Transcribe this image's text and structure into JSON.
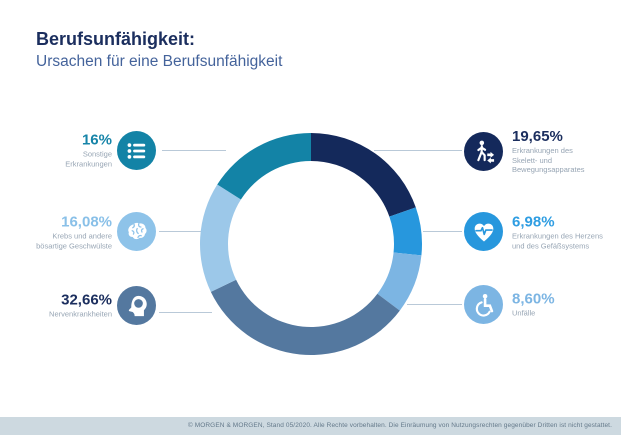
{
  "header": {
    "title": "Berufsunfähigkeit:",
    "subtitle": "Ursachen für eine Berufsunfähigkeit"
  },
  "chart_data": {
    "type": "pie",
    "variant": "donut",
    "title": "Berufsunfähigkeit: Ursachen für eine Berufsunfähigkeit",
    "start_angle": "top",
    "direction": "clockwise",
    "unit": "%",
    "segments": [
      {
        "label": "Erkrankungen des Skelett- und Bewegungsapparates",
        "value": 19.65,
        "display": "19,65%",
        "color": "#14295b"
      },
      {
        "label": "Erkrankungen des Herzens und des Gefäßsystems",
        "value": 6.98,
        "display": "6,98%",
        "color": "#2797dd"
      },
      {
        "label": "Unfälle",
        "value": 8.6,
        "display": "8,60%",
        "color": "#7cb5e3"
      },
      {
        "label": "Nervenkrankheiten",
        "value": 32.66,
        "display": "32,66%",
        "color": "#54789f"
      },
      {
        "label": "Krebs und andere bösartige Geschwülste",
        "value": 16.08,
        "display": "16,08%",
        "color": "#9cc8e9"
      },
      {
        "label": "Sonstige Erkrankungen",
        "value": 16.0,
        "display": "16%",
        "color": "#1383a6"
      }
    ]
  },
  "legend": {
    "left": [
      {
        "pct": "16%",
        "label": "Sonstige\nErkrankungen",
        "color": "#1684a8",
        "icon": "list-icon",
        "icon_bg": "#1383a6"
      },
      {
        "pct": "16,08%",
        "label": "Krebs und andere\nbösartige Geschwülste",
        "color": "#89c0e8",
        "icon": "brain-icon",
        "icon_bg": "#8ec3e9"
      },
      {
        "pct": "32,66%",
        "label": "Nervenkrankheiten",
        "color": "#1b2e5e",
        "icon": "head-profile-icon",
        "icon_bg": "#54789f"
      }
    ],
    "right": [
      {
        "pct": "19,65%",
        "label": "Erkrankungen des\nSkelett- und\nBewegungsapparates",
        "color": "#1b2e5e",
        "icon": "walking-person-icon",
        "icon_bg": "#14295b"
      },
      {
        "pct": "6,98%",
        "label": "Erkrankungen des Herzens\nund des Gefäßsystems",
        "color": "#2e9de2",
        "icon": "heart-pulse-icon",
        "icon_bg": "#2797dd"
      },
      {
        "pct": "8,60%",
        "label": "Unfälle",
        "color": "#7cb5e3",
        "icon": "wheelchair-icon",
        "icon_bg": "#7cb5e3"
      }
    ]
  },
  "footer": {
    "copyright": "© MORGEN & MORGEN, Stand 05/2020. Alle Rechte vorbehalten. Die Einräumung von Nutzungsrechten gegenüber Dritten ist nicht gestattet."
  },
  "colors": {
    "title": "#1b2e5e",
    "subtitle": "#44639b",
    "label_text": "#97a5b4",
    "connector": "#b9c9d8",
    "footer_bg": "#cdd9e0",
    "footer_text": "#64798a"
  }
}
